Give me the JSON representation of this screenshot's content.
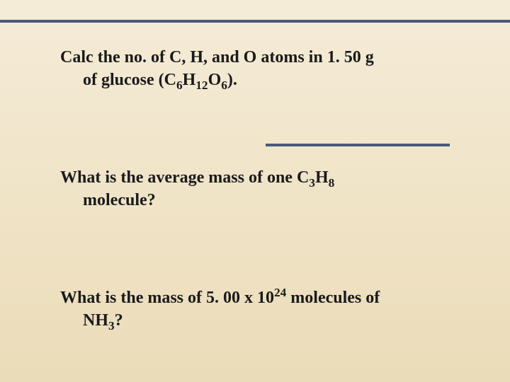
{
  "background_gradient": [
    "#f5ecd8",
    "#f0e4c8",
    "#ebdcb8"
  ],
  "divider_color": "#4a5a7a",
  "text_color": "#1a1a1a",
  "font_family": "Georgia, Times New Roman, serif",
  "font_size_pt": 24,
  "font_weight": "bold",
  "q1": {
    "line1_pre": "Calc the no. of C, H, and  O atoms in 1. 50 g",
    "line2_pre": "of glucose (C",
    "sub1": "6",
    "mid1": "H",
    "sub2": "12",
    "mid2": "O",
    "sub3": "6",
    "line2_post": ")."
  },
  "q2": {
    "line1_pre": "What is the average mass of one C",
    "sub1": "3",
    "mid1": "H",
    "sub2": "8",
    "line2": "molecule?"
  },
  "q3": {
    "line1_pre": "What is the mass of 5. 00 x 10",
    "sup1": "24",
    "line1_post": " molecules of",
    "line2_pre": "NH",
    "sub1": "3",
    "line2_post": "?"
  }
}
